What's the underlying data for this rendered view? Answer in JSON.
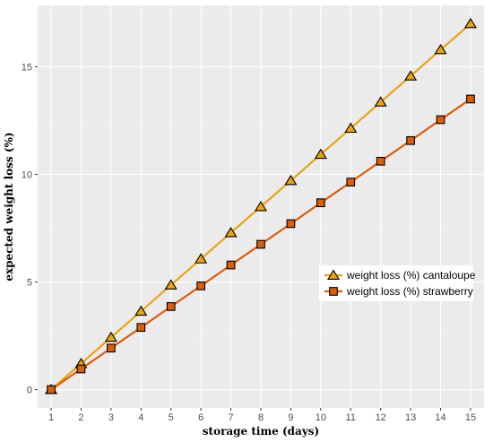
{
  "chart_data": {
    "type": "line",
    "title": "",
    "xlabel": "storage time (days)",
    "ylabel": "expected weight loss (%)",
    "x": [
      1,
      2,
      3,
      4,
      5,
      6,
      7,
      8,
      9,
      10,
      11,
      12,
      13,
      14,
      15
    ],
    "x_ticks": [
      "1",
      "2",
      "3",
      "4",
      "5",
      "6",
      "7",
      "8",
      "9",
      "10",
      "11",
      "12",
      "13",
      "14",
      "15"
    ],
    "y_ticks": [
      "0",
      "5",
      "10",
      "15"
    ],
    "xlim": [
      0.55,
      15.45
    ],
    "ylim": [
      -0.85,
      17.85
    ],
    "grid": true,
    "legend_position": "right",
    "series": [
      {
        "name": "weight loss (%) cantaloupe",
        "marker": "triangle",
        "color": "#E8A317",
        "values": [
          0,
          1.21,
          2.43,
          3.64,
          4.86,
          6.07,
          7.29,
          8.5,
          9.71,
          10.93,
          12.14,
          13.36,
          14.57,
          15.79,
          17.0
        ]
      },
      {
        "name": "weight loss (%) strawberry",
        "marker": "square",
        "color": "#D95F0E",
        "values": [
          0,
          0.96,
          1.93,
          2.89,
          3.86,
          4.82,
          5.79,
          6.75,
          7.71,
          8.68,
          9.64,
          10.61,
          11.57,
          12.54,
          13.5
        ]
      }
    ]
  }
}
